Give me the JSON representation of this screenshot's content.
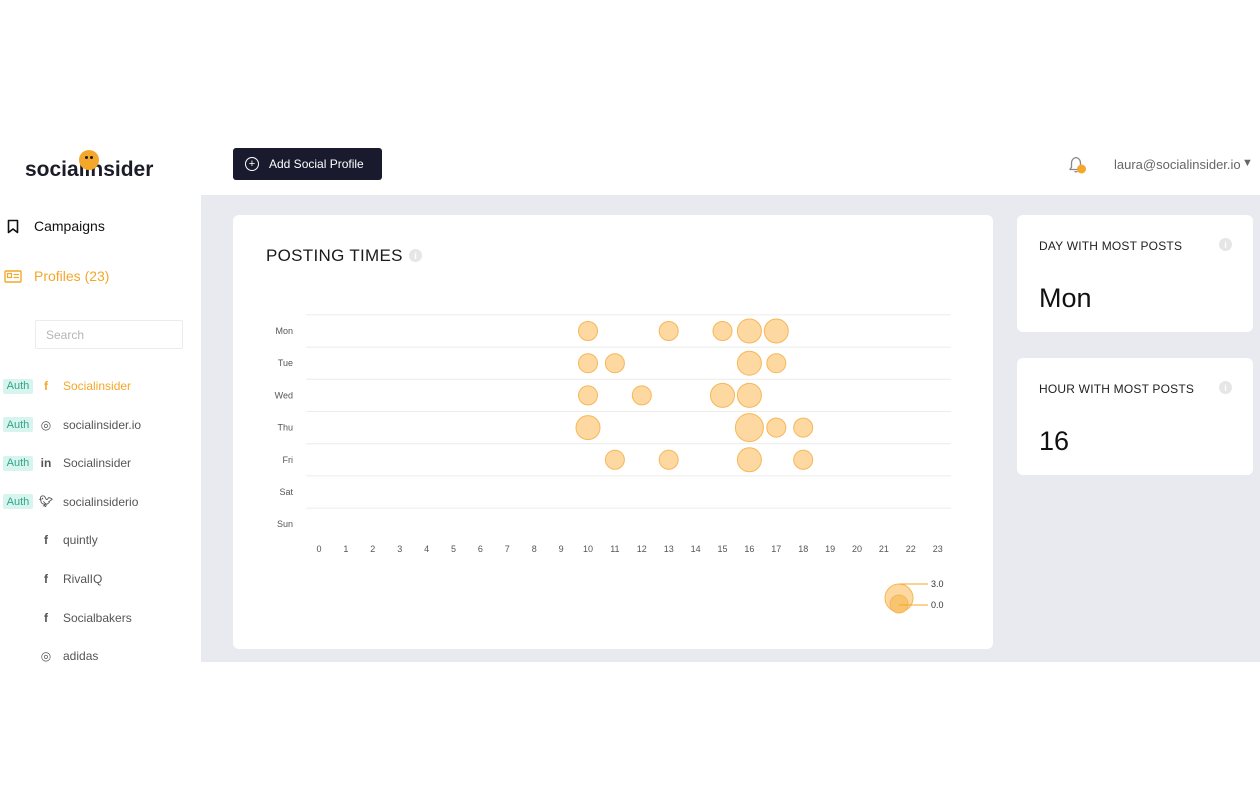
{
  "brand": {
    "name": "socialinsider"
  },
  "sidebar": {
    "nav": [
      {
        "label": "Campaigns",
        "icon": "bookmark-icon"
      },
      {
        "label": "Profiles (23)",
        "icon": "profile-card-icon",
        "color": "#f4a72a"
      }
    ],
    "search_placeholder": "Search",
    "profiles": [
      {
        "auth": "Auth",
        "network": "facebook",
        "name": "Socialinsider",
        "active": true
      },
      {
        "auth": "Auth",
        "network": "instagram",
        "name": "socialinsider.io"
      },
      {
        "auth": "Auth",
        "network": "linkedin",
        "name": "Socialinsider"
      },
      {
        "auth": "Auth",
        "network": "twitter",
        "name": "socialinsiderio"
      },
      {
        "auth": "",
        "network": "facebook",
        "name": "quintly"
      },
      {
        "auth": "",
        "network": "facebook",
        "name": "RivalIQ"
      },
      {
        "auth": "",
        "network": "facebook",
        "name": "Socialbakers"
      },
      {
        "auth": "",
        "network": "instagram",
        "name": "adidas"
      }
    ]
  },
  "topbar": {
    "add_button_label": "Add Social Profile",
    "user_email": "laura@socialinsider.io",
    "caret": "▼"
  },
  "chart": {
    "title": "POSTING TIMES",
    "info": "i",
    "legend": {
      "max_label": "3.0",
      "min_label": "0.0"
    }
  },
  "stats": [
    {
      "label": "DAY WITH MOST POSTS",
      "value": "Mon"
    },
    {
      "label": "HOUR WITH MOST POSTS",
      "value": "16"
    }
  ],
  "colors": {
    "accent": "#f4a72a",
    "bubble_fill": "#fdd8a0",
    "bubble_stroke": "#f6b758",
    "dark_button": "#1a1a2e"
  },
  "chart_data": {
    "type": "scatter",
    "title": "POSTING TIMES",
    "days": [
      "Mon",
      "Tue",
      "Wed",
      "Thu",
      "Fri",
      "Sat",
      "Sun"
    ],
    "hours": [
      0,
      1,
      2,
      3,
      4,
      5,
      6,
      7,
      8,
      9,
      10,
      11,
      12,
      13,
      14,
      15,
      16,
      17,
      18,
      19,
      20,
      21,
      22,
      23
    ],
    "size_range": [
      0.0,
      3.0
    ],
    "points": [
      {
        "day": "Mon",
        "hour": 10,
        "size": 1
      },
      {
        "day": "Mon",
        "hour": 13,
        "size": 1
      },
      {
        "day": "Mon",
        "hour": 15,
        "size": 1
      },
      {
        "day": "Mon",
        "hour": 16,
        "size": 2
      },
      {
        "day": "Mon",
        "hour": 17,
        "size": 2
      },
      {
        "day": "Tue",
        "hour": 10,
        "size": 1
      },
      {
        "day": "Tue",
        "hour": 11,
        "size": 1
      },
      {
        "day": "Tue",
        "hour": 16,
        "size": 2
      },
      {
        "day": "Tue",
        "hour": 17,
        "size": 1
      },
      {
        "day": "Wed",
        "hour": 10,
        "size": 1
      },
      {
        "day": "Wed",
        "hour": 12,
        "size": 1
      },
      {
        "day": "Wed",
        "hour": 15,
        "size": 2
      },
      {
        "day": "Wed",
        "hour": 16,
        "size": 2
      },
      {
        "day": "Thu",
        "hour": 10,
        "size": 2
      },
      {
        "day": "Thu",
        "hour": 16,
        "size": 3
      },
      {
        "day": "Thu",
        "hour": 17,
        "size": 1
      },
      {
        "day": "Thu",
        "hour": 18,
        "size": 1
      },
      {
        "day": "Fri",
        "hour": 11,
        "size": 1
      },
      {
        "day": "Fri",
        "hour": 13,
        "size": 1
      },
      {
        "day": "Fri",
        "hour": 16,
        "size": 2
      },
      {
        "day": "Fri",
        "hour": 18,
        "size": 1
      }
    ]
  }
}
